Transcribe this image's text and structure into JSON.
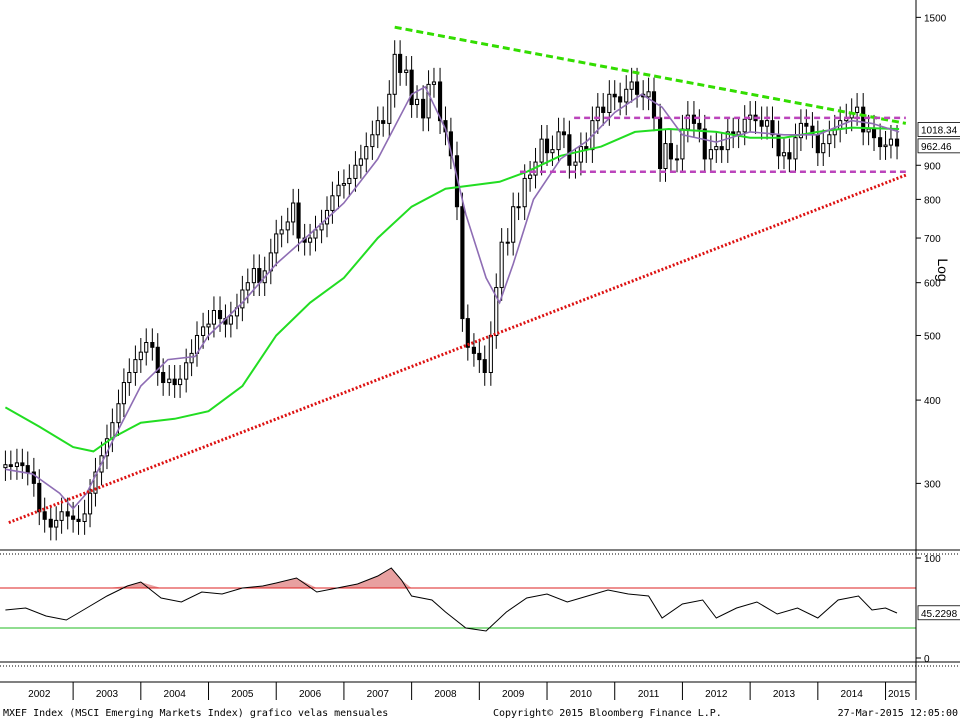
{
  "chart_data": [
    {
      "type": "candlestick",
      "panel": "price",
      "scale": "log",
      "ylabel": "Log",
      "yticks": [
        300,
        400,
        500,
        600,
        700,
        800,
        900,
        1500
      ],
      "ylim": [
        240,
        1560
      ],
      "x_ticks": [
        "2002",
        "2003",
        "2004",
        "2005",
        "2006",
        "2007",
        "2008",
        "2009",
        "2010",
        "2011",
        "2012",
        "2013",
        "2014",
        "2015"
      ],
      "last_value_label": "962.46",
      "ma_label": "1018.34",
      "colors": {
        "ma_short": "#8e6db4",
        "ma_long": "#22dd22",
        "resistance": "#33dd00",
        "support": "#dd1111",
        "range": "#bb44bb"
      },
      "closes": [
        [
          2002.0,
          320
        ],
        [
          2002.08,
          318
        ],
        [
          2002.17,
          322
        ],
        [
          2002.25,
          319
        ],
        [
          2002.33,
          312
        ],
        [
          2002.42,
          300
        ],
        [
          2002.5,
          272
        ],
        [
          2002.58,
          265
        ],
        [
          2002.67,
          258
        ],
        [
          2002.75,
          264
        ],
        [
          2002.83,
          272
        ],
        [
          2002.92,
          268
        ],
        [
          2003.0,
          265
        ],
        [
          2003.08,
          263
        ],
        [
          2003.17,
          270
        ],
        [
          2003.25,
          290
        ],
        [
          2003.33,
          312
        ],
        [
          2003.42,
          330
        ],
        [
          2003.5,
          350
        ],
        [
          2003.58,
          370
        ],
        [
          2003.67,
          395
        ],
        [
          2003.75,
          425
        ],
        [
          2003.83,
          440
        ],
        [
          2003.92,
          460
        ],
        [
          2004.0,
          472
        ],
        [
          2004.08,
          488
        ],
        [
          2004.17,
          480
        ],
        [
          2004.25,
          440
        ],
        [
          2004.33,
          425
        ],
        [
          2004.42,
          430
        ],
        [
          2004.5,
          422
        ],
        [
          2004.58,
          430
        ],
        [
          2004.67,
          455
        ],
        [
          2004.75,
          470
        ],
        [
          2004.83,
          500
        ],
        [
          2004.92,
          515
        ],
        [
          2005.0,
          520
        ],
        [
          2005.08,
          545
        ],
        [
          2005.17,
          530
        ],
        [
          2005.25,
          520
        ],
        [
          2005.33,
          535
        ],
        [
          2005.42,
          550
        ],
        [
          2005.5,
          585
        ],
        [
          2005.58,
          600
        ],
        [
          2005.67,
          630
        ],
        [
          2005.75,
          600
        ],
        [
          2005.83,
          625
        ],
        [
          2005.92,
          665
        ],
        [
          2006.0,
          710
        ],
        [
          2006.08,
          720
        ],
        [
          2006.17,
          740
        ],
        [
          2006.25,
          790
        ],
        [
          2006.33,
          700
        ],
        [
          2006.42,
          690
        ],
        [
          2006.5,
          700
        ],
        [
          2006.58,
          720
        ],
        [
          2006.67,
          735
        ],
        [
          2006.75,
          770
        ],
        [
          2006.83,
          810
        ],
        [
          2006.92,
          840
        ],
        [
          2007.0,
          845
        ],
        [
          2007.08,
          860
        ],
        [
          2007.17,
          900
        ],
        [
          2007.25,
          920
        ],
        [
          2007.33,
          960
        ],
        [
          2007.42,
          1000
        ],
        [
          2007.5,
          1050
        ],
        [
          2007.58,
          1040
        ],
        [
          2007.67,
          1150
        ],
        [
          2007.75,
          1320
        ],
        [
          2007.83,
          1240
        ],
        [
          2007.92,
          1250
        ],
        [
          2008.0,
          1110
        ],
        [
          2008.08,
          1130
        ],
        [
          2008.17,
          1060
        ],
        [
          2008.25,
          1190
        ],
        [
          2008.33,
          1200
        ],
        [
          2008.42,
          1050
        ],
        [
          2008.5,
          1010
        ],
        [
          2008.58,
          930
        ],
        [
          2008.67,
          780
        ],
        [
          2008.75,
          530
        ],
        [
          2008.83,
          480
        ],
        [
          2008.92,
          470
        ],
        [
          2009.0,
          460
        ],
        [
          2009.08,
          440
        ],
        [
          2009.17,
          500
        ],
        [
          2009.25,
          590
        ],
        [
          2009.33,
          690
        ],
        [
          2009.42,
          690
        ],
        [
          2009.5,
          780
        ],
        [
          2009.58,
          780
        ],
        [
          2009.67,
          860
        ],
        [
          2009.75,
          870
        ],
        [
          2009.83,
          910
        ],
        [
          2009.92,
          985
        ],
        [
          2010.0,
          940
        ],
        [
          2010.08,
          950
        ],
        [
          2010.17,
          1010
        ],
        [
          2010.25,
          1000
        ],
        [
          2010.33,
          900
        ],
        [
          2010.42,
          910
        ],
        [
          2010.5,
          960
        ],
        [
          2010.58,
          950
        ],
        [
          2010.67,
          1050
        ],
        [
          2010.75,
          1100
        ],
        [
          2010.83,
          1080
        ],
        [
          2010.92,
          1150
        ],
        [
          2011.0,
          1140
        ],
        [
          2011.08,
          1120
        ],
        [
          2011.17,
          1170
        ],
        [
          2011.25,
          1200
        ],
        [
          2011.33,
          1150
        ],
        [
          2011.42,
          1140
        ],
        [
          2011.5,
          1160
        ],
        [
          2011.58,
          1060
        ],
        [
          2011.67,
          890
        ],
        [
          2011.75,
          970
        ],
        [
          2011.83,
          920
        ],
        [
          2011.92,
          920
        ],
        [
          2012.0,
          1020
        ],
        [
          2012.08,
          1070
        ],
        [
          2012.17,
          1040
        ],
        [
          2012.25,
          1020
        ],
        [
          2012.33,
          920
        ],
        [
          2012.42,
          950
        ],
        [
          2012.5,
          960
        ],
        [
          2012.58,
          950
        ],
        [
          2012.67,
          1010
        ],
        [
          2012.75,
          1000
        ],
        [
          2012.83,
          1010
        ],
        [
          2012.92,
          1055
        ],
        [
          2013.0,
          1070
        ],
        [
          2013.08,
          1050
        ],
        [
          2013.17,
          1030
        ],
        [
          2013.25,
          1050
        ],
        [
          2013.33,
          1000
        ],
        [
          2013.42,
          930
        ],
        [
          2013.5,
          940
        ],
        [
          2013.58,
          920
        ],
        [
          2013.67,
          990
        ],
        [
          2013.75,
          1040
        ],
        [
          2013.83,
          1030
        ],
        [
          2013.92,
          1000
        ],
        [
          2014.0,
          940
        ],
        [
          2014.08,
          970
        ],
        [
          2014.17,
          1000
        ],
        [
          2014.25,
          1020
        ],
        [
          2014.33,
          1050
        ],
        [
          2014.42,
          1060
        ],
        [
          2014.5,
          1080
        ],
        [
          2014.58,
          1100
        ],
        [
          2014.67,
          1010
        ],
        [
          2014.75,
          1020
        ],
        [
          2014.83,
          990
        ],
        [
          2014.92,
          960
        ],
        [
          2015.0,
          965
        ],
        [
          2015.08,
          985
        ],
        [
          2015.17,
          962
        ]
      ],
      "ma_short": [
        [
          2002.0,
          315
        ],
        [
          2002.4,
          310
        ],
        [
          2002.8,
          290
        ],
        [
          2003.0,
          275
        ],
        [
          2003.2,
          290
        ],
        [
          2003.6,
          350
        ],
        [
          2004.0,
          420
        ],
        [
          2004.4,
          460
        ],
        [
          2004.8,
          465
        ],
        [
          2005.0,
          500
        ],
        [
          2005.5,
          560
        ],
        [
          2006.0,
          640
        ],
        [
          2006.5,
          710
        ],
        [
          2007.0,
          790
        ],
        [
          2007.5,
          920
        ],
        [
          2008.0,
          1150
        ],
        [
          2008.2,
          1180
        ],
        [
          2008.5,
          1020
        ],
        [
          2008.8,
          760
        ],
        [
          2009.1,
          610
        ],
        [
          2009.3,
          560
        ],
        [
          2009.5,
          640
        ],
        [
          2009.8,
          800
        ],
        [
          2010.2,
          920
        ],
        [
          2010.6,
          980
        ],
        [
          2011.0,
          1080
        ],
        [
          2011.4,
          1150
        ],
        [
          2011.7,
          1100
        ],
        [
          2012.0,
          1000
        ],
        [
          2012.5,
          975
        ],
        [
          2013.0,
          1010
        ],
        [
          2013.5,
          1000
        ],
        [
          2014.0,
          1000
        ],
        [
          2014.5,
          1050
        ],
        [
          2014.8,
          1040
        ],
        [
          2015.2,
          1010
        ]
      ],
      "ma_long": [
        [
          2002.0,
          390
        ],
        [
          2002.5,
          365
        ],
        [
          2003.0,
          340
        ],
        [
          2003.3,
          335
        ],
        [
          2003.6,
          352
        ],
        [
          2004.0,
          370
        ],
        [
          2004.5,
          375
        ],
        [
          2005.0,
          385
        ],
        [
          2005.5,
          420
        ],
        [
          2006.0,
          500
        ],
        [
          2006.5,
          560
        ],
        [
          2007.0,
          610
        ],
        [
          2007.5,
          700
        ],
        [
          2008.0,
          780
        ],
        [
          2008.5,
          830
        ],
        [
          2008.9,
          840
        ],
        [
          2009.3,
          850
        ],
        [
          2009.7,
          880
        ],
        [
          2010.2,
          930
        ],
        [
          2010.8,
          960
        ],
        [
          2011.3,
          1010
        ],
        [
          2011.8,
          1020
        ],
        [
          2012.5,
          1010
        ],
        [
          2013.0,
          990
        ],
        [
          2013.5,
          990
        ],
        [
          2014.0,
          1010
        ],
        [
          2014.5,
          1025
        ],
        [
          2015.2,
          1020
        ]
      ],
      "trendlines": [
        {
          "name": "support",
          "from": [
            2002.05,
            262
          ],
          "to": [
            2015.3,
            870
          ]
        },
        {
          "name": "resistance",
          "from": [
            2007.75,
            1450
          ],
          "to": [
            2015.3,
            1040
          ]
        },
        {
          "name": "range-top",
          "from": [
            2010.4,
            1060
          ],
          "to": [
            2015.3,
            1060
          ]
        },
        {
          "name": "range-bottom",
          "from": [
            2009.6,
            880
          ],
          "to": [
            2015.3,
            880
          ]
        }
      ]
    },
    {
      "type": "line",
      "panel": "indicator",
      "ylim": [
        0,
        100
      ],
      "yticks": [
        0,
        100
      ],
      "last_value_label": "45.2298",
      "upper_band": 70,
      "lower_band": 30,
      "colors": {
        "line": "#000000",
        "upper": "#dd2222",
        "lower": "#22bb22",
        "overbought_fill": "#e8a0a0"
      },
      "values": [
        [
          2002.0,
          48
        ],
        [
          2002.3,
          50
        ],
        [
          2002.6,
          42
        ],
        [
          2002.9,
          38
        ],
        [
          2003.2,
          50
        ],
        [
          2003.5,
          62
        ],
        [
          2003.8,
          72
        ],
        [
          2004.0,
          76
        ],
        [
          2004.3,
          60
        ],
        [
          2004.6,
          56
        ],
        [
          2004.9,
          66
        ],
        [
          2005.2,
          64
        ],
        [
          2005.5,
          70
        ],
        [
          2005.8,
          72
        ],
        [
          2006.0,
          75
        ],
        [
          2006.3,
          80
        ],
        [
          2006.6,
          66
        ],
        [
          2006.9,
          70
        ],
        [
          2007.2,
          74
        ],
        [
          2007.5,
          82
        ],
        [
          2007.7,
          90
        ],
        [
          2007.85,
          78
        ],
        [
          2008.0,
          62
        ],
        [
          2008.3,
          58
        ],
        [
          2008.5,
          46
        ],
        [
          2008.8,
          30
        ],
        [
          2009.1,
          27
        ],
        [
          2009.4,
          46
        ],
        [
          2009.7,
          60
        ],
        [
          2010.0,
          64
        ],
        [
          2010.3,
          56
        ],
        [
          2010.6,
          62
        ],
        [
          2010.9,
          68
        ],
        [
          2011.2,
          64
        ],
        [
          2011.5,
          62
        ],
        [
          2011.7,
          40
        ],
        [
          2012.0,
          54
        ],
        [
          2012.3,
          58
        ],
        [
          2012.5,
          40
        ],
        [
          2012.8,
          50
        ],
        [
          2013.1,
          56
        ],
        [
          2013.4,
          44
        ],
        [
          2013.7,
          50
        ],
        [
          2014.0,
          40
        ],
        [
          2014.3,
          58
        ],
        [
          2014.6,
          62
        ],
        [
          2014.8,
          48
        ],
        [
          2015.0,
          50
        ],
        [
          2015.17,
          45
        ]
      ]
    }
  ],
  "footer": {
    "left": "MXEF Index (MSCI Emerging Markets Index) grafico velas mensuales",
    "center": "Copyright© 2015 Bloomberg Finance L.P.",
    "right": "27-Mar-2015 12:05:00"
  }
}
